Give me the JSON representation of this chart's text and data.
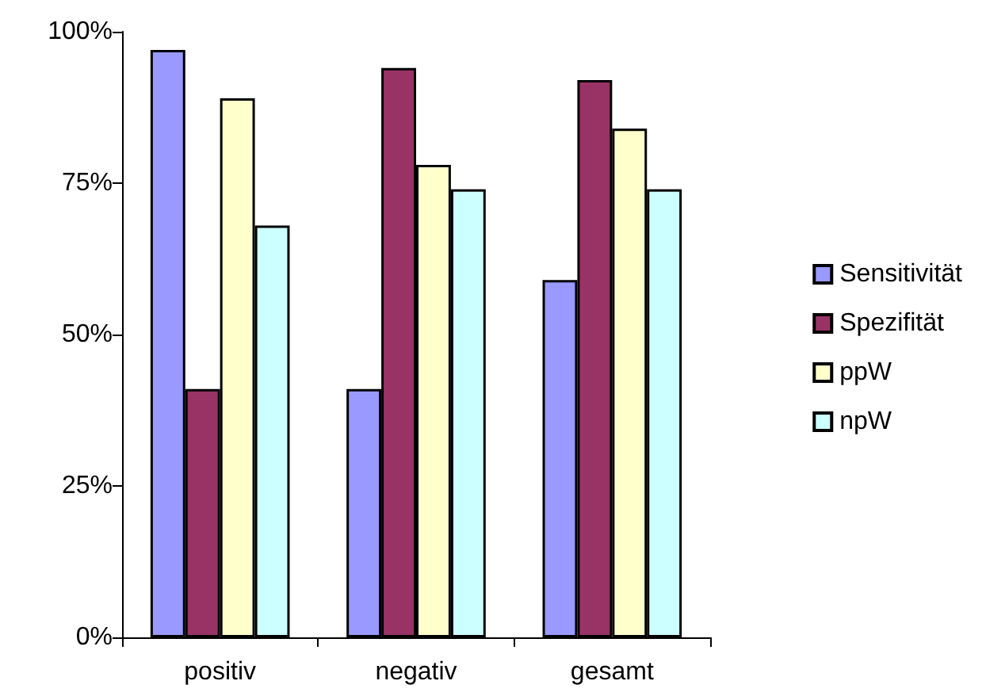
{
  "chart_data": {
    "type": "bar",
    "categories": [
      "positiv",
      "negativ",
      "gesamt"
    ],
    "series": [
      {
        "name": "Sensitivität",
        "color": "#9999ff",
        "values": [
          97,
          41,
          59
        ]
      },
      {
        "name": "Spezifität",
        "color": "#993366",
        "values": [
          41,
          94,
          92
        ]
      },
      {
        "name": "ppW",
        "color": "#ffffcc",
        "values": [
          89,
          78,
          84
        ]
      },
      {
        "name": "npW",
        "color": "#ccffff",
        "values": [
          68,
          74,
          74
        ]
      }
    ],
    "ylim": [
      0,
      100
    ],
    "yticks": [
      {
        "value": 0,
        "label": "0%"
      },
      {
        "value": 25,
        "label": "25%"
      },
      {
        "value": 50,
        "label": "50%"
      },
      {
        "value": 75,
        "label": "75%"
      },
      {
        "value": 100,
        "label": "100%"
      }
    ],
    "legend": "right"
  }
}
